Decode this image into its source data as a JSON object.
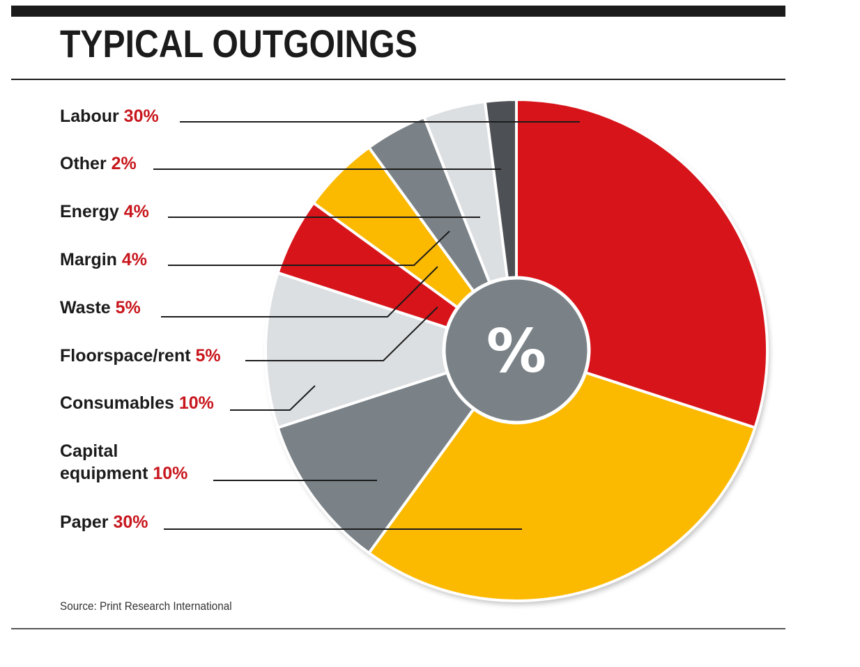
{
  "title": "TYPICAL OUTGOINGS",
  "source": "Source: Print Research International",
  "center_symbol": "%",
  "chart_data": {
    "type": "pie",
    "title": "TYPICAL OUTGOINGS",
    "order": "clockwise from top",
    "labels": [
      {
        "name": "Labour",
        "pct": "30%"
      },
      {
        "name": "Other",
        "pct": "2%"
      },
      {
        "name": "Energy",
        "pct": "4%"
      },
      {
        "name": "Margin",
        "pct": "4%"
      },
      {
        "name": "Waste",
        "pct": "5%"
      },
      {
        "name": "Floorspace/rent",
        "pct": "5%"
      },
      {
        "name": "Consumables",
        "pct": "10%"
      },
      {
        "name": "Capital equipment",
        "pct": "10%",
        "lines": [
          "Capital",
          "equipment"
        ]
      },
      {
        "name": "Paper",
        "pct": "30%"
      }
    ],
    "slices": [
      {
        "name": "Labour",
        "value": 30,
        "color": "#d7141a"
      },
      {
        "name": "Paper",
        "value": 30,
        "color": "#fbb900"
      },
      {
        "name": "Capital equipment",
        "value": 10,
        "color": "#7a8287"
      },
      {
        "name": "Consumables",
        "value": 10,
        "color": "#dcdfe2"
      },
      {
        "name": "Floorspace/rent",
        "value": 5,
        "color": "#d7141a"
      },
      {
        "name": "Waste",
        "value": 5,
        "color": "#fbb900"
      },
      {
        "name": "Margin",
        "value": 4,
        "color": "#7a8287"
      },
      {
        "name": "Energy",
        "value": 4,
        "color": "#dcdfe2"
      },
      {
        "name": "Other",
        "value": 2,
        "color": "#4d5054"
      }
    ],
    "colors": {
      "label_text": "#1b1b1b",
      "percent_text": "#c8161d",
      "center": "#7a8287"
    }
  }
}
